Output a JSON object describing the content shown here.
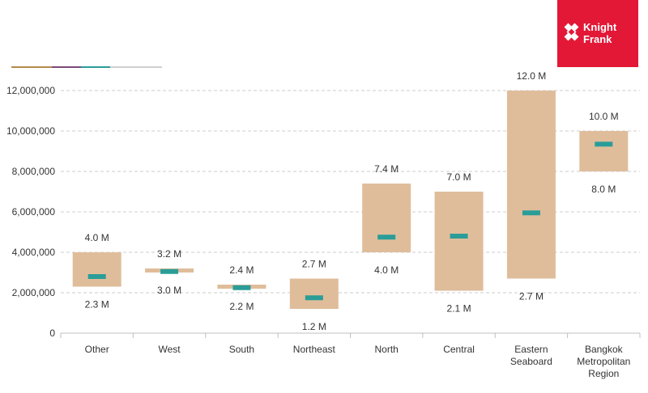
{
  "logo": {
    "line1": "Knight",
    "line2": "Frank",
    "color": "#e31837"
  },
  "legend_rule_colors": [
    "#b5894d",
    "#7b4a7a",
    "#2a9d98",
    "#cfcfcf"
  ],
  "chart_data": {
    "type": "range-bar",
    "categories": [
      [
        "Other"
      ],
      [
        "West"
      ],
      [
        "South"
      ],
      [
        "Northeast"
      ],
      [
        "North"
      ],
      [
        "Central"
      ],
      [
        "Eastern",
        "Seaboard"
      ],
      [
        "Bangkok",
        "Metropolitan",
        "Region"
      ]
    ],
    "series": [
      {
        "name": "",
        "kind": "range",
        "low": [
          2300000,
          3000000,
          2200000,
          1200000,
          4000000,
          2100000,
          2700000,
          8000000
        ],
        "high": [
          4000000,
          3200000,
          2400000,
          2700000,
          7400000,
          7000000,
          12000000,
          10000000
        ]
      },
      {
        "name": "",
        "kind": "marker",
        "values": [
          2800000,
          3050000,
          2250000,
          1750000,
          4750000,
          4800000,
          5950000,
          9350000
        ]
      }
    ],
    "high_labels": [
      "4.0 M",
      "3.2 M",
      "2.4 M",
      "2.7 M",
      "7.4 M",
      "7.0 M",
      "12.0 M",
      "10.0 M"
    ],
    "low_labels": [
      "2.3 M",
      "3.0 M",
      "2.2 M",
      "1.2 M",
      "4.0 M",
      "2.1 M",
      "2.7 M",
      "8.0 M"
    ],
    "yticks": [
      0,
      2000000,
      4000000,
      6000000,
      8000000,
      10000000,
      12000000
    ],
    "ytick_labels": [
      "0",
      "2,000,000",
      "4,000,000",
      "6,000,000",
      "8,000,000",
      "10,000,000",
      "12,000,000"
    ],
    "ylim": [
      0,
      12000000
    ],
    "grid": true,
    "colors": {
      "range": "#dfbd9b",
      "marker": "#2a9d98",
      "grid": "#cccccc",
      "axis": "#bfbfbf"
    }
  }
}
